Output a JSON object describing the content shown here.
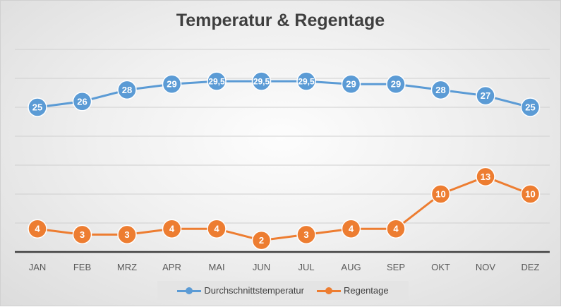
{
  "chart_data": {
    "type": "line",
    "title": "Temperatur & Regentage",
    "categories": [
      "JAN",
      "FEB",
      "MRZ",
      "APR",
      "MAI",
      "JUN",
      "JUL",
      "AUG",
      "SEP",
      "OKT",
      "NOV",
      "DEZ"
    ],
    "series": [
      {
        "name": "Durchschnittstemperatur",
        "color": "#5b9bd5",
        "values": [
          25,
          26,
          28,
          29,
          29.5,
          29.5,
          29.5,
          29,
          29,
          28,
          27,
          25
        ],
        "labels": [
          "25",
          "26",
          "28",
          "29",
          "29,5",
          "29,5",
          "29,5",
          "29",
          "29",
          "28",
          "27",
          "25"
        ]
      },
      {
        "name": "Regentage",
        "color": "#ed7d31",
        "values": [
          4,
          3,
          3,
          4,
          4,
          2,
          3,
          4,
          4,
          10,
          13,
          10
        ],
        "labels": [
          "4",
          "3",
          "3",
          "4",
          "4",
          "2",
          "3",
          "4",
          "4",
          "10",
          "13",
          "10"
        ]
      }
    ],
    "ylim": [
      0,
      35
    ],
    "y_tick_step": 5,
    "y_tick_labels_shown": false,
    "grid": true,
    "legend_position": "bottom",
    "data_labels": "inside-markers"
  }
}
